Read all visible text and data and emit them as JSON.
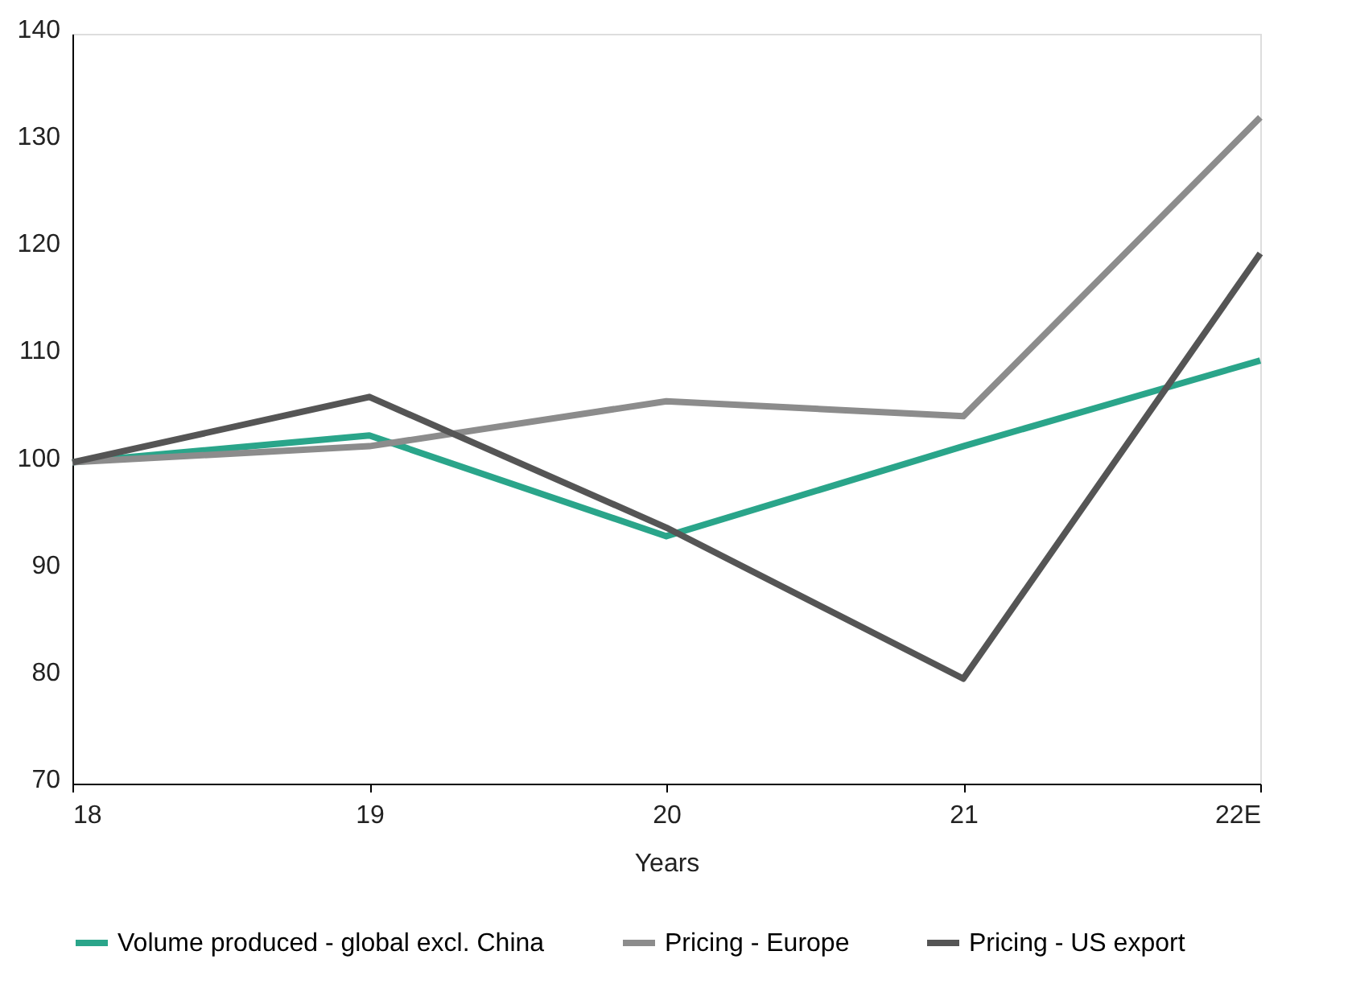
{
  "chart_data": {
    "type": "line",
    "xlabel": "Years",
    "categories": [
      "18",
      "19",
      "20",
      "21",
      "22E"
    ],
    "series": [
      {
        "name": "Volume produced - global excl. China",
        "color": "#2aa58a",
        "values": [
          100,
          102.5,
          93.1,
          101.5,
          109.5
        ]
      },
      {
        "name": "Pricing - Europe",
        "color": "#8c8c8c",
        "values": [
          100,
          101.5,
          105.7,
          104.3,
          132.2
        ]
      },
      {
        "name": "Pricing - US export",
        "color": "#555555",
        "values": [
          100,
          106.1,
          93.9,
          79.8,
          119.5
        ]
      }
    ],
    "ylim": [
      70,
      140
    ],
    "yticks": [
      70,
      80,
      90,
      100,
      110,
      120,
      130,
      140
    ],
    "grid": false,
    "legend": "bottom",
    "marker": "none",
    "line_style": "solid"
  }
}
